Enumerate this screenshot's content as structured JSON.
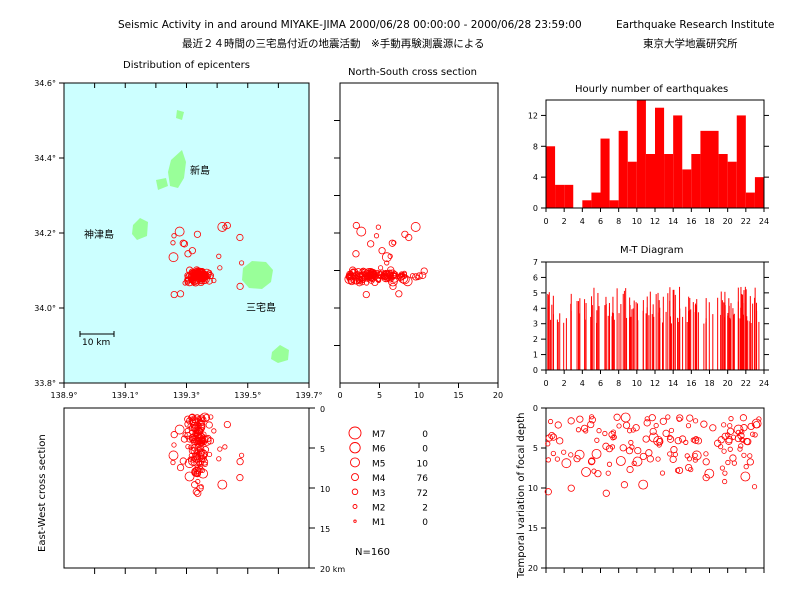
{
  "header": {
    "title_en": "Seismic Activity in and around MIYAKE-JIMA 2000/06/28 00:00:00 - 2000/06/28 23:59:00",
    "institute_en": "Earthquake Research Institute",
    "title_ja": "最近２４時間の三宅島付近の地震活動　※手動再験測震源による",
    "institute_ja": "東京大学地震研究所"
  },
  "map": {
    "label": "Distribution of epicenters",
    "scale_label": "10 km",
    "islands": [
      "新島",
      "神津島",
      "三宅島"
    ],
    "colors": {
      "sea": "#ccffff",
      "land": "#99ff99",
      "event": "#ff0000"
    }
  },
  "legend": {
    "entries": [
      {
        "label": "M7",
        "count": "0"
      },
      {
        "label": "M6",
        "count": "0"
      },
      {
        "label": "M5",
        "count": "10"
      },
      {
        "label": "M4",
        "count": "76"
      },
      {
        "label": "M3",
        "count": "72"
      },
      {
        "label": "M2",
        "count": "2"
      },
      {
        "label": "M1",
        "count": "0"
      }
    ],
    "total": "N=160"
  },
  "chart_data": [
    {
      "type": "scatter",
      "title": "Distribution of epicenters",
      "xlabel": "",
      "ylabel": "",
      "xlim": [
        138.9,
        139.7
      ],
      "ylim": [
        33.8,
        34.6
      ],
      "x_ticks": [
        "138.9°",
        "139.1°",
        "139.3°",
        "139.5°",
        "139.7°"
      ],
      "y_ticks": [
        "33.8°",
        "34.0°",
        "34.2°",
        "34.4°",
        "34.6°"
      ]
    },
    {
      "type": "scatter",
      "title": "North-South cross section",
      "xlabel": "",
      "ylabel": "",
      "xlim": [
        0,
        20
      ],
      "x_ticks": [
        "0",
        "5",
        "10",
        "15",
        "20"
      ]
    },
    {
      "type": "scatter",
      "title": "",
      "xlabel": "",
      "ylabel": "East-West cross section",
      "ylim": [
        0,
        20
      ],
      "y_ticks": [
        "0",
        "5",
        "10",
        "15",
        "20 km"
      ]
    },
    {
      "type": "bar",
      "title": "Hourly number of earthquakes",
      "xlabel": "",
      "ylabel": "",
      "x": [
        0,
        1,
        2,
        3,
        4,
        5,
        6,
        7,
        8,
        9,
        10,
        11,
        12,
        13,
        14,
        15,
        16,
        17,
        18,
        19,
        20,
        21,
        22,
        23
      ],
      "values": [
        8,
        3,
        3,
        0,
        1,
        2,
        9,
        1,
        10,
        6,
        14,
        7,
        13,
        7,
        12,
        5,
        7,
        10,
        10,
        7,
        6,
        12,
        2,
        4
      ],
      "ylim": [
        0,
        14
      ],
      "x_ticks": [
        "0",
        "2",
        "4",
        "6",
        "8",
        "10",
        "12",
        "14",
        "16",
        "18",
        "20",
        "22",
        "24"
      ],
      "y_ticks": [
        "0",
        "4",
        "8",
        "12"
      ],
      "color": "#ff0000"
    },
    {
      "type": "bar",
      "title": "M-T Diagram",
      "xlabel": "",
      "ylabel": "",
      "ylim": [
        0,
        7
      ],
      "x_ticks": [
        "0",
        "2",
        "4",
        "6",
        "8",
        "10",
        "12",
        "14",
        "16",
        "18",
        "20",
        "22",
        "24"
      ],
      "y_ticks": [
        "0",
        "1",
        "2",
        "3",
        "4",
        "5",
        "6",
        "7"
      ],
      "color": "#ff0000"
    },
    {
      "type": "scatter",
      "title": "",
      "xlabel": "",
      "ylabel": "Temporal variation of focal depth",
      "ylim": [
        0,
        20
      ],
      "y_ticks": [
        "0",
        "5",
        "10",
        "15",
        "20"
      ]
    }
  ]
}
